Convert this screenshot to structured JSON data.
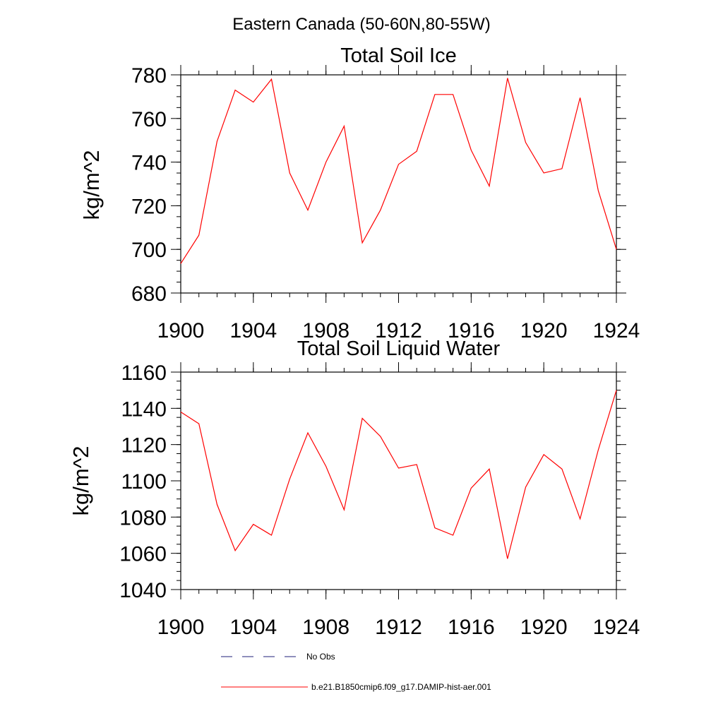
{
  "figure": {
    "title": "Eastern Canada (50-60N,80-55W)"
  },
  "chart_data": [
    {
      "type": "line",
      "title": "Total Soil Ice",
      "xlabel": "",
      "ylabel": "kg/m^2",
      "xlim": [
        1900,
        1924
      ],
      "ylim": [
        680,
        780
      ],
      "x_ticks": [
        1900,
        1904,
        1908,
        1912,
        1916,
        1920,
        1924
      ],
      "y_ticks": [
        680,
        700,
        720,
        740,
        760,
        780
      ],
      "x_minor_step": 1,
      "y_minor_step": 5,
      "grid": false,
      "series": [
        {
          "name": "b.e21.B1850cmip6.f09_g17.DAMIP-hist-aer.001",
          "color": "#ff0000",
          "x": [
            1900,
            1901,
            1902,
            1903,
            1904,
            1905,
            1906,
            1907,
            1908,
            1909,
            1910,
            1911,
            1912,
            1913,
            1914,
            1915,
            1916,
            1917,
            1918,
            1919,
            1920,
            1921,
            1922,
            1923,
            1924
          ],
          "y": [
            693.5,
            706.5,
            749.5,
            773,
            767.5,
            778,
            735,
            718,
            740,
            756.5,
            703,
            718,
            739,
            745,
            771,
            771,
            745.5,
            729,
            778.5,
            749,
            735,
            737,
            769.5,
            727,
            700
          ]
        }
      ]
    },
    {
      "type": "line",
      "title": "Total Soil Liquid Water",
      "xlabel": "",
      "ylabel": "kg/m^2",
      "xlim": [
        1900,
        1924
      ],
      "ylim": [
        1040,
        1160
      ],
      "x_ticks": [
        1900,
        1904,
        1908,
        1912,
        1916,
        1920,
        1924
      ],
      "y_ticks": [
        1040,
        1060,
        1080,
        1100,
        1120,
        1140,
        1160
      ],
      "x_minor_step": 1,
      "y_minor_step": 5,
      "grid": false,
      "series": [
        {
          "name": "b.e21.B1850cmip6.f09_g17.DAMIP-hist-aer.001",
          "color": "#ff0000",
          "x": [
            1900,
            1901,
            1902,
            1903,
            1904,
            1905,
            1906,
            1907,
            1908,
            1909,
            1910,
            1911,
            1912,
            1913,
            1914,
            1915,
            1916,
            1917,
            1918,
            1919,
            1920,
            1921,
            1922,
            1923,
            1924
          ],
          "y": [
            1138,
            1131.5,
            1087,
            1061.5,
            1076,
            1070,
            1101,
            1126.5,
            1108,
            1084,
            1134.5,
            1124.5,
            1107,
            1109,
            1074,
            1070,
            1096,
            1106.5,
            1057,
            1096.5,
            1114.5,
            1106.5,
            1079,
            1117,
            1150
          ]
        }
      ]
    }
  ],
  "legend": {
    "placement": "bottom",
    "entries": [
      {
        "label": "No Obs",
        "style": "dashed",
        "color": "#1f1f7a"
      },
      {
        "label": "b.e21.B1850cmip6.f09_g17.DAMIP-hist-aer.001",
        "style": "solid",
        "color": "#ff0000"
      }
    ]
  }
}
